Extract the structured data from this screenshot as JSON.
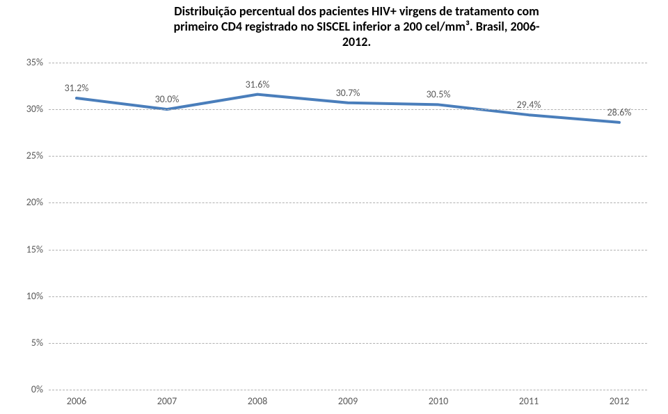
{
  "title": {
    "line1": "Distribuição percentual dos pacientes HIV+ virgens de tratamento com",
    "line2": "primeiro CD4 registrado no SISCEL inferior a 200 cel/mm³. Brasil, 2006-",
    "line3": "2012.",
    "fontsize": 18,
    "color": "#000000"
  },
  "chart": {
    "type": "line",
    "x_categories": [
      "2006",
      "2007",
      "2008",
      "2009",
      "2010",
      "2011",
      "2012"
    ],
    "values": [
      31.2,
      30.0,
      31.6,
      30.7,
      30.5,
      29.4,
      28.6
    ],
    "value_labels": [
      "31.2%",
      "30.0%",
      "31.6%",
      "30.7%",
      "30.5%",
      "29.4%",
      "28.6%"
    ],
    "ylim": [
      0,
      35
    ],
    "ytick_step": 5,
    "y_ticks": [
      "0%",
      "5%",
      "10%",
      "15%",
      "20%",
      "25%",
      "30%",
      "35%"
    ],
    "line_color": "#4a7ebb",
    "line_width": 4,
    "grid_color": "#b0b0b0",
    "grid_dash": "4,3",
    "background_color": "#ffffff",
    "axis_label_fontsize": 14,
    "axis_label_color": "#595959",
    "data_label_fontsize": 14,
    "data_label_color": "#595959"
  }
}
